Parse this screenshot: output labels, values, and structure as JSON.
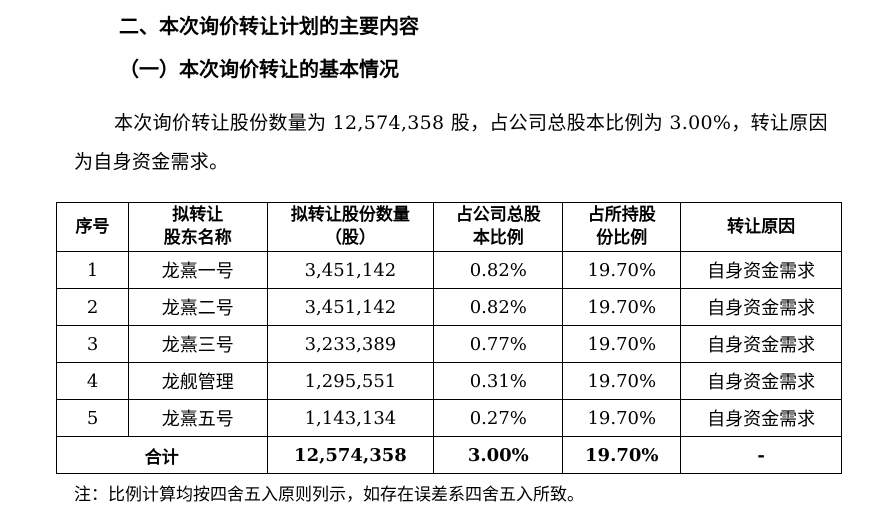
{
  "section_title": "二、本次询价转让计划的主要内容",
  "subsection_title": "（一）本次询价转让的基本情况",
  "intro_paragraph": "本次询价转让股份数量为 12,574,358 股，占公司总股本比例为 3.00%，转让原因为自身资金需求。",
  "table": {
    "headers": {
      "seq": "序号",
      "holder_line1": "拟转让",
      "holder_line2": "股东名称",
      "shares_line1": "拟转让股份数量",
      "shares_line2": "（股）",
      "total_ratio_line1": "占公司总股",
      "total_ratio_line2": "本比例",
      "held_ratio_line1": "占所持股",
      "held_ratio_line2": "份比例",
      "reason": "转让原因"
    },
    "rows": [
      {
        "seq": "1",
        "holder": "龙熹一号",
        "shares": "3,451,142",
        "total_ratio": "0.82%",
        "held_ratio": "19.70%",
        "reason": "自身资金需求"
      },
      {
        "seq": "2",
        "holder": "龙熹二号",
        "shares": "3,451,142",
        "total_ratio": "0.82%",
        "held_ratio": "19.70%",
        "reason": "自身资金需求"
      },
      {
        "seq": "3",
        "holder": "龙熹三号",
        "shares": "3,233,389",
        "total_ratio": "0.77%",
        "held_ratio": "19.70%",
        "reason": "自身资金需求"
      },
      {
        "seq": "4",
        "holder": "龙舰管理",
        "shares": "1,295,551",
        "total_ratio": "0.31%",
        "held_ratio": "19.70%",
        "reason": "自身资金需求"
      },
      {
        "seq": "5",
        "holder": "龙熹五号",
        "shares": "1,143,134",
        "total_ratio": "0.27%",
        "held_ratio": "19.70%",
        "reason": "自身资金需求"
      }
    ],
    "total": {
      "label": "合计",
      "shares": "12,574,358",
      "total_ratio": "3.00%",
      "held_ratio": "19.70%",
      "reason": "-"
    }
  },
  "note": "注：比例计算均按四舍五入原则列示，如存在误差系四舍五入所致。"
}
